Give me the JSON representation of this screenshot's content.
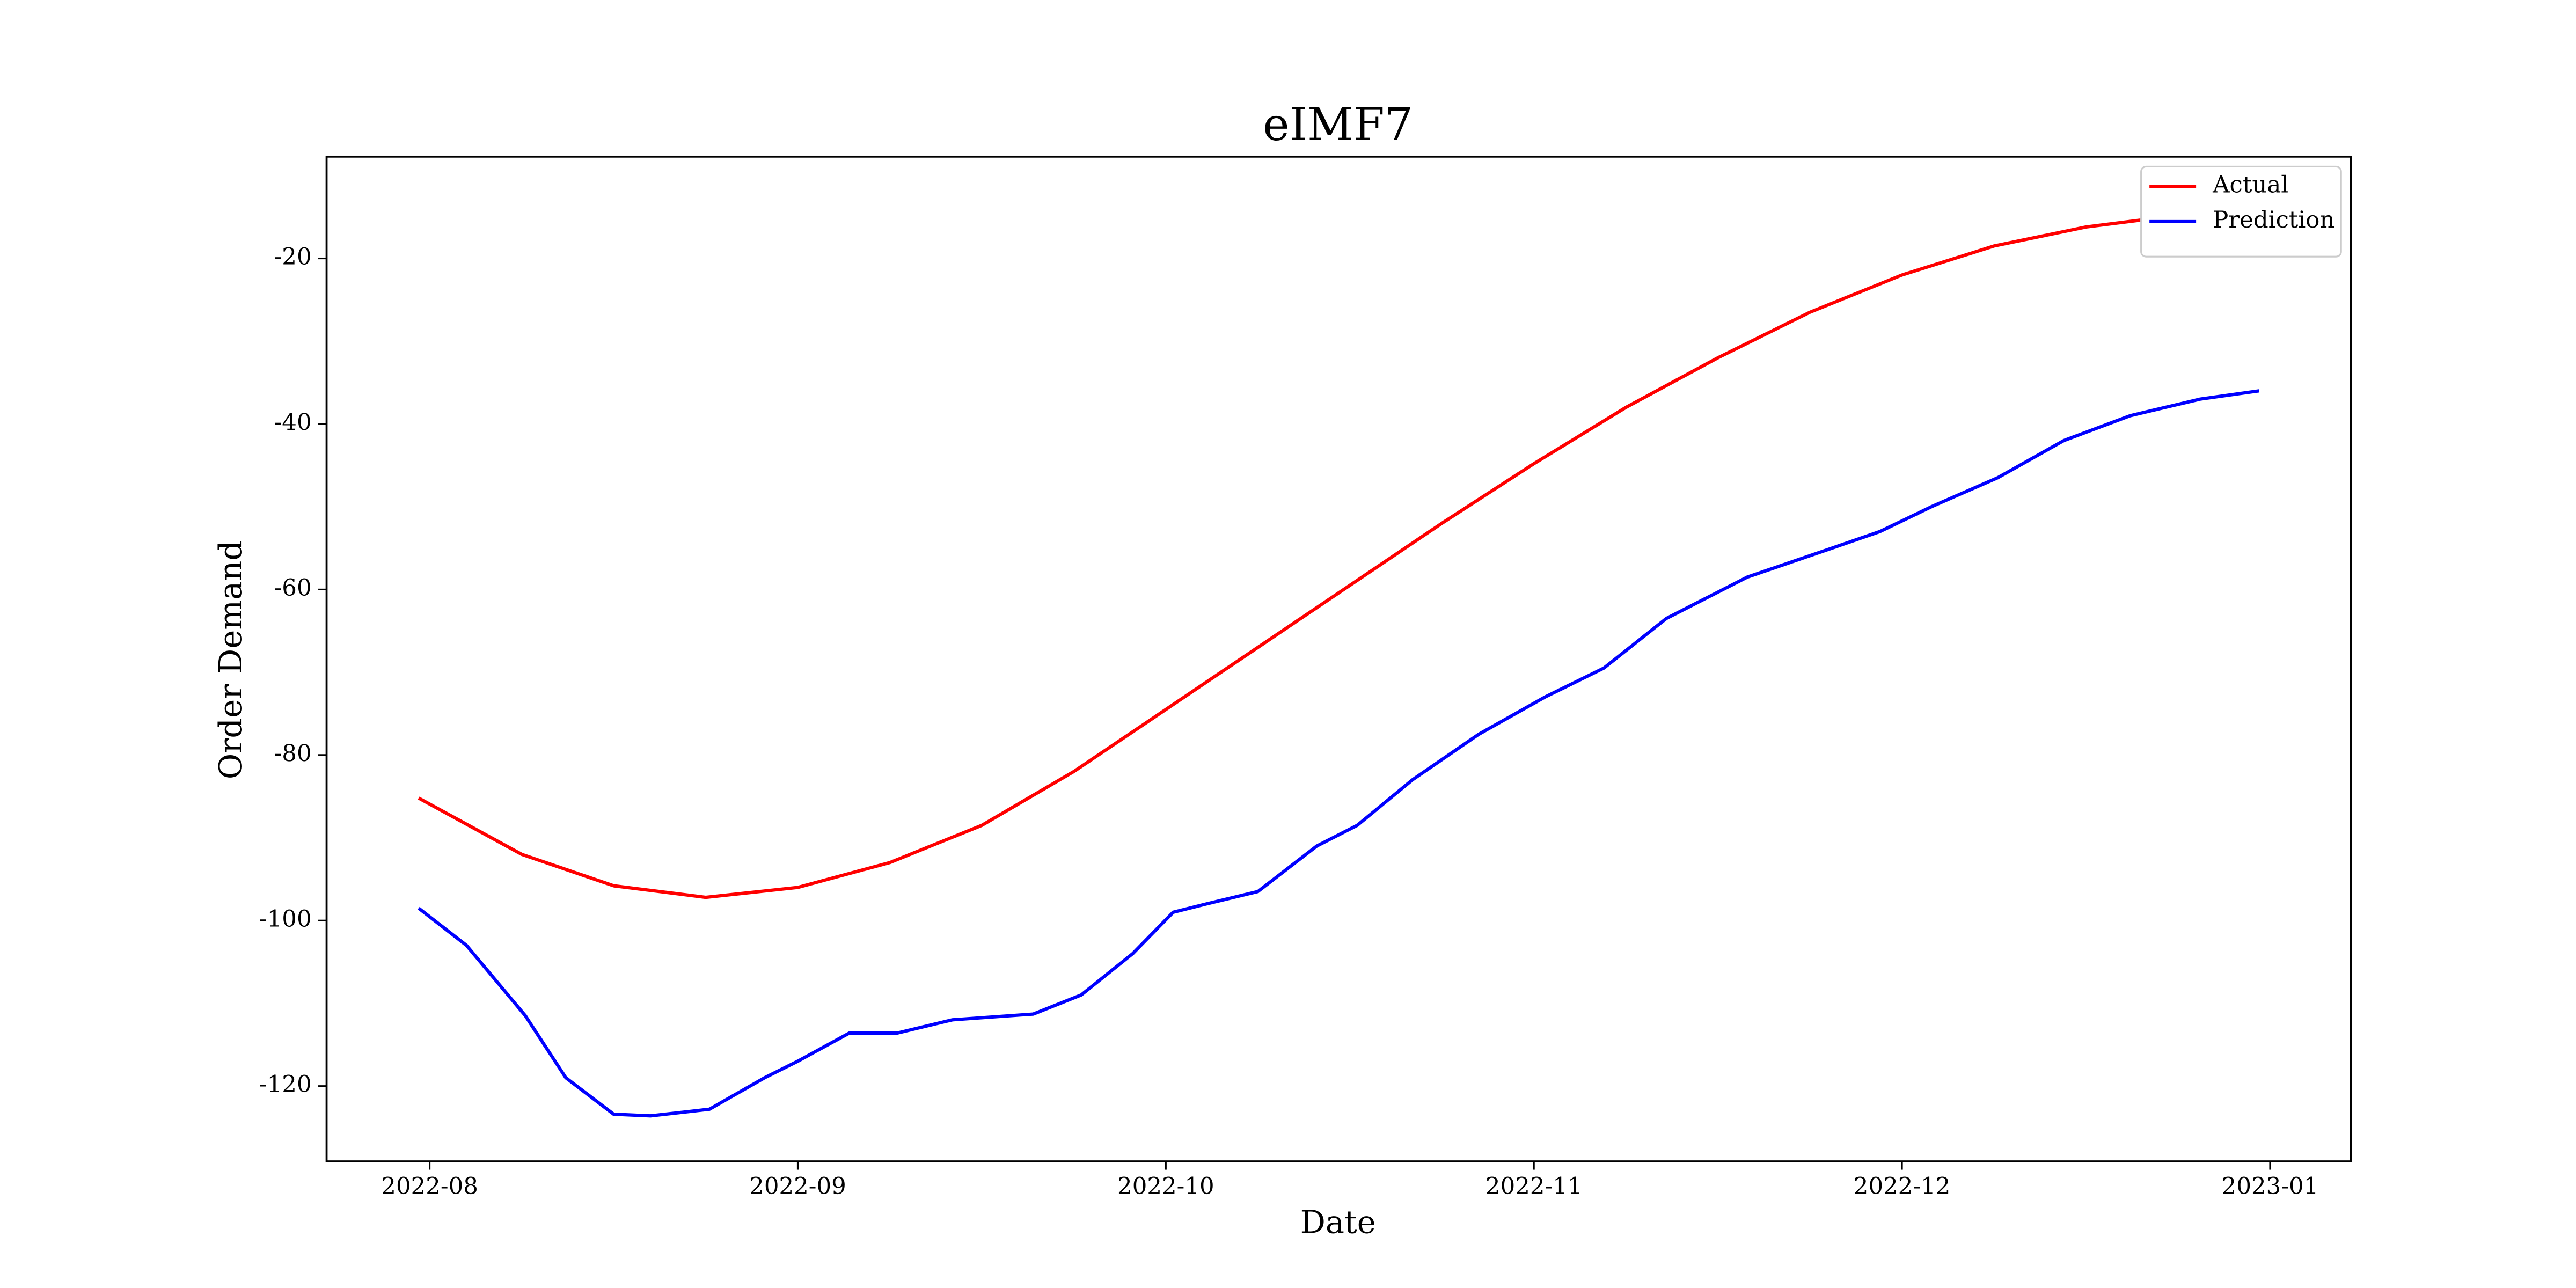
{
  "chart_data": {
    "type": "line",
    "title": "eIMF7",
    "xlabel": "Date",
    "ylabel": "Order Demand",
    "xlim": [
      7.72,
      13.22
    ],
    "ylim": [
      -129.1,
      -7.7
    ],
    "xticks": [
      {
        "value": 8,
        "label": "2022-08"
      },
      {
        "value": 9,
        "label": "2022-09"
      },
      {
        "value": 10,
        "label": "2022-10"
      },
      {
        "value": 11,
        "label": "2022-11"
      },
      {
        "value": 12,
        "label": "2022-12"
      },
      {
        "value": 13,
        "label": "2023-01"
      }
    ],
    "yticks": [
      -120,
      -100,
      -80,
      -60,
      -40,
      -20
    ],
    "legend": "upper right",
    "series": [
      {
        "name": "Actual",
        "color": "#ff0000",
        "x": [
          7.97,
          8.25,
          8.5,
          8.75,
          9.0,
          9.25,
          9.5,
          9.75,
          10.0,
          10.25,
          10.5,
          10.75,
          11.0,
          11.25,
          11.5,
          11.75,
          12.0,
          12.25,
          12.5,
          12.75,
          12.97
        ],
        "values": [
          -85.2,
          -92,
          -95.8,
          -97.2,
          -96,
          -93,
          -88.5,
          -82,
          -74.5,
          -67,
          -59.5,
          -52,
          -44.8,
          -38,
          -32,
          -26.5,
          -22,
          -18.5,
          -16.2,
          -14.8,
          -14.3
        ]
      },
      {
        "name": "Prediction",
        "color": "#0000ff",
        "x": [
          7.97,
          8.1,
          8.26,
          8.37,
          8.5,
          8.6,
          8.76,
          8.91,
          9.0,
          9.14,
          9.27,
          9.42,
          9.64,
          9.77,
          9.91,
          10.02,
          10.11,
          10.25,
          10.41,
          10.52,
          10.67,
          10.85,
          11.03,
          11.19,
          11.36,
          11.58,
          11.81,
          11.94,
          12.08,
          12.26,
          12.44,
          12.62,
          12.81,
          12.97
        ],
        "values": [
          -98.5,
          -103,
          -111.5,
          -119,
          -123.4,
          -123.6,
          -122.8,
          -119,
          -117,
          -113.6,
          -113.6,
          -112,
          -111.3,
          -109,
          -104,
          -99,
          -98,
          -96.5,
          -91,
          -88.5,
          -83,
          -77.5,
          -73,
          -69.5,
          -63.5,
          -58.5,
          -55,
          -53,
          -50,
          -46.5,
          -42,
          -39,
          -37,
          -36
        ]
      }
    ]
  }
}
